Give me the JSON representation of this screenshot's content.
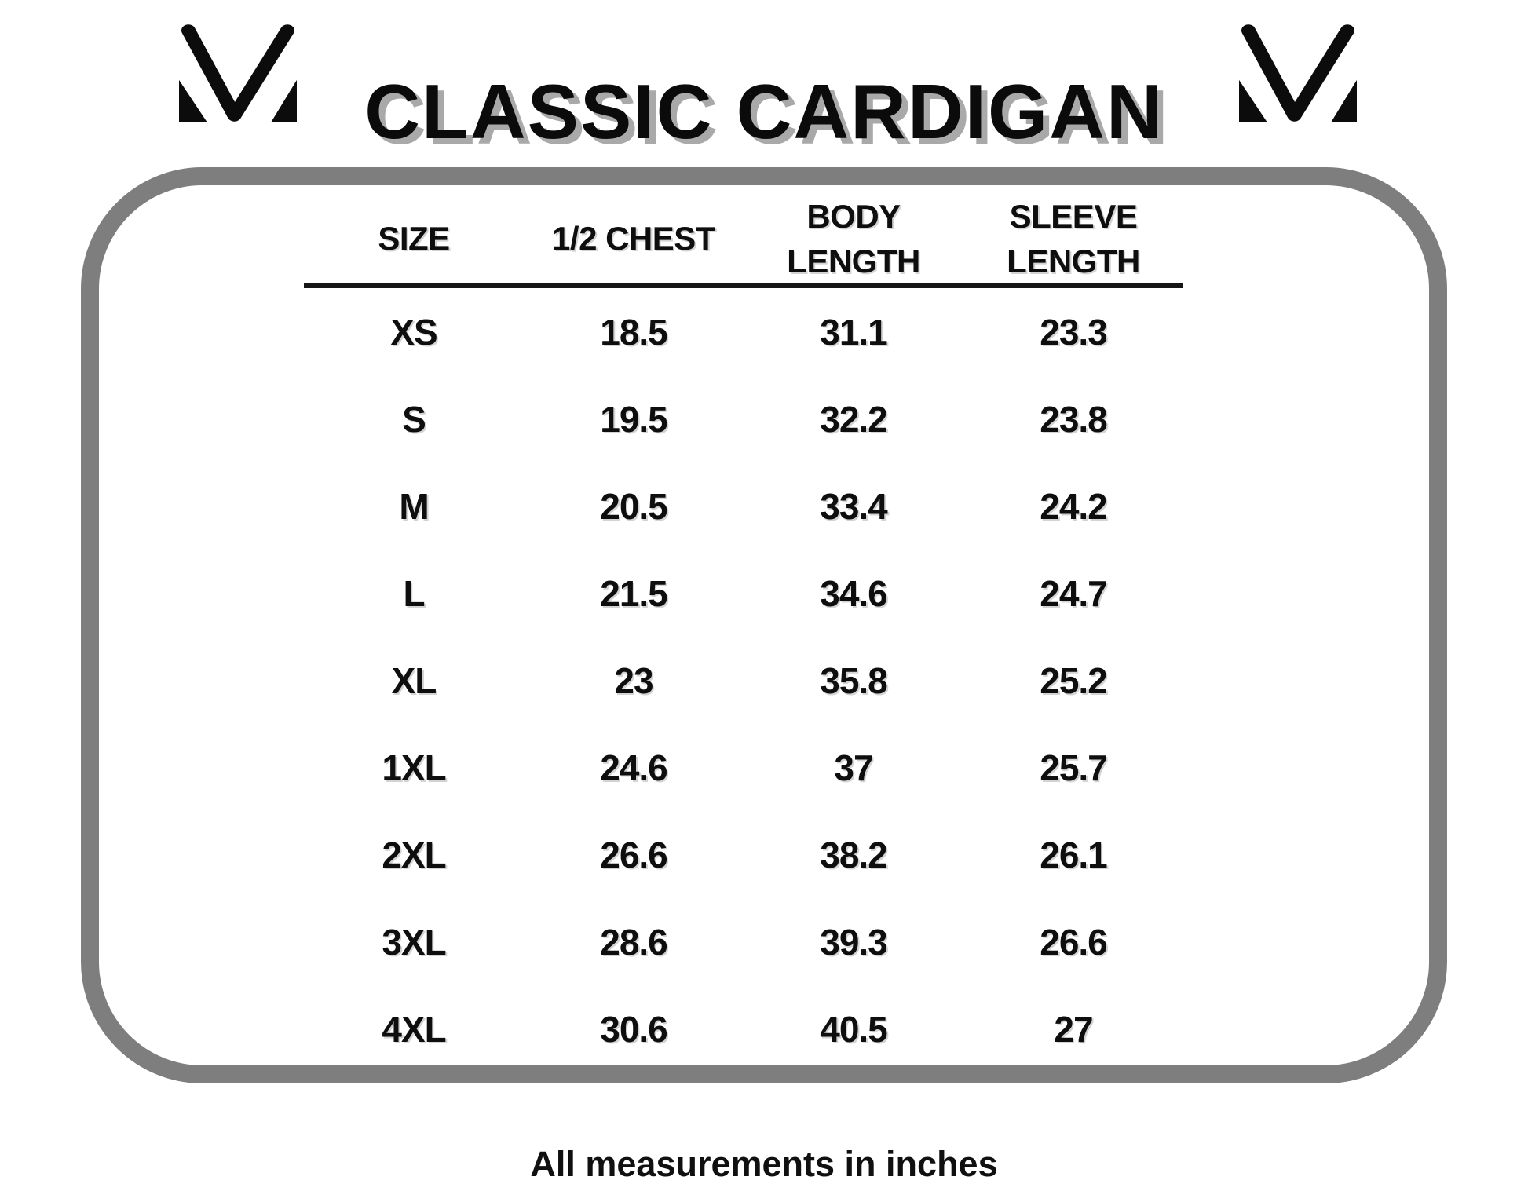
{
  "header": {
    "title": "CLASSIC CARDIGAN"
  },
  "icons": {
    "left_logo": "mv-monogram-icon",
    "right_logo": "mv-monogram-icon"
  },
  "colors": {
    "text": "#0e0e0e",
    "panel_border_gray": "#7e7e7e",
    "title_shadow_gray": "#a9a9a9",
    "header_rule_black": "#161616",
    "background": "#ffffff"
  },
  "size_chart": {
    "columns": [
      {
        "id": "size",
        "label": "SIZE",
        "lines": [
          "SIZE"
        ]
      },
      {
        "id": "half-chest",
        "label": "1/2 CHEST",
        "lines": [
          "1/2 CHEST"
        ]
      },
      {
        "id": "body-length",
        "label": "BODY LENGTH",
        "lines": [
          "BODY",
          "LENGTH"
        ]
      },
      {
        "id": "sleeve-length",
        "label": "SLEEVE LENGTH",
        "lines": [
          "SLEEVE",
          "LENGTH"
        ]
      }
    ],
    "rows": [
      {
        "size": "XS",
        "half_chest": "18.5",
        "body_length": "31.1",
        "sleeve_length": "23.3"
      },
      {
        "size": "S",
        "half_chest": "19.5",
        "body_length": "32.2",
        "sleeve_length": "23.8"
      },
      {
        "size": "M",
        "half_chest": "20.5",
        "body_length": "33.4",
        "sleeve_length": "24.2"
      },
      {
        "size": "L",
        "half_chest": "21.5",
        "body_length": "34.6",
        "sleeve_length": "24.7"
      },
      {
        "size": "XL",
        "half_chest": "23",
        "body_length": "35.8",
        "sleeve_length": "25.2"
      },
      {
        "size": "1XL",
        "half_chest": "24.6",
        "body_length": "37",
        "sleeve_length": "25.7"
      },
      {
        "size": "2XL",
        "half_chest": "26.6",
        "body_length": "38.2",
        "sleeve_length": "26.1"
      },
      {
        "size": "3XL",
        "half_chest": "28.6",
        "body_length": "39.3",
        "sleeve_length": "26.6"
      },
      {
        "size": "4XL",
        "half_chest": "30.6",
        "body_length": "40.5",
        "sleeve_length": "27"
      }
    ]
  },
  "footer": {
    "note": "All measurements in inches"
  },
  "chart_data": {
    "type": "table",
    "title": "CLASSIC CARDIGAN",
    "columns": [
      "SIZE",
      "1/2 CHEST",
      "BODY LENGTH",
      "SLEEVE LENGTH"
    ],
    "rows": [
      [
        "XS",
        18.5,
        31.1,
        23.3
      ],
      [
        "S",
        19.5,
        32.2,
        23.8
      ],
      [
        "M",
        20.5,
        33.4,
        24.2
      ],
      [
        "L",
        21.5,
        34.6,
        24.7
      ],
      [
        "XL",
        23,
        35.8,
        25.2
      ],
      [
        "1XL",
        24.6,
        37,
        25.7
      ],
      [
        "2XL",
        26.6,
        38.2,
        26.1
      ],
      [
        "3XL",
        28.6,
        39.3,
        26.6
      ],
      [
        "4XL",
        30.6,
        40.5,
        27
      ]
    ],
    "units": "inches",
    "note": "All measurements in inches"
  }
}
